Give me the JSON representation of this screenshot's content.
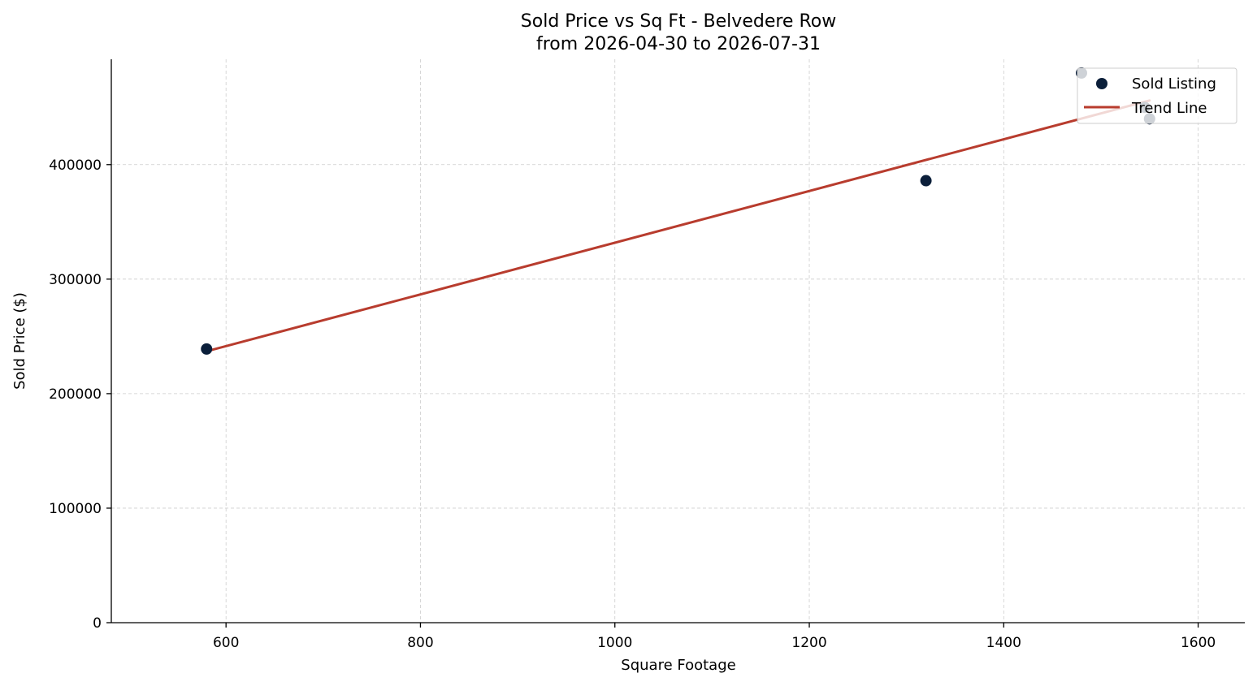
{
  "chart_data": {
    "type": "scatter",
    "title": "Sold Price vs Sq Ft - Belvedere Row",
    "subtitle": "from 2026-04-30 to 2026-07-31",
    "xlabel": "Square Footage",
    "ylabel": "Sold Price ($)",
    "xlim": [
      482,
      1648
    ],
    "ylim": [
      0,
      492000
    ],
    "xticks": [
      600,
      800,
      1000,
      1200,
      1400,
      1600
    ],
    "yticks": [
      0,
      100000,
      200000,
      300000,
      400000
    ],
    "grid": true,
    "legend_position": "top-right",
    "series": [
      {
        "name": "Sold Listing",
        "kind": "scatter",
        "color": "#0b1f3a",
        "points": [
          {
            "x": 580,
            "y": 239000
          },
          {
            "x": 1320,
            "y": 386000
          },
          {
            "x": 1480,
            "y": 480000
          },
          {
            "x": 1545,
            "y": 450000
          },
          {
            "x": 1550,
            "y": 440000
          }
        ]
      },
      {
        "name": "Trend Line",
        "kind": "line",
        "color": "#b83c2e",
        "points": [
          {
            "x": 580,
            "y": 237000
          },
          {
            "x": 1550,
            "y": 456000
          }
        ]
      }
    ]
  }
}
